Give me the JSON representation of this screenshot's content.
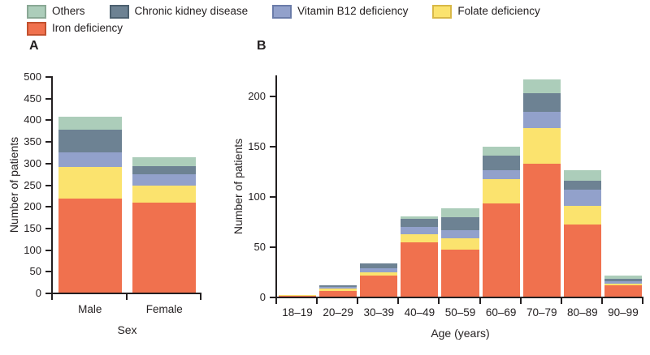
{
  "legend": {
    "items": [
      {
        "label": "Others",
        "color": "#accdba",
        "border": "#8aa895"
      },
      {
        "label": "Chronic kidney disease",
        "color": "#6d8293",
        "border": "#4d6170"
      },
      {
        "label": "Vitamin B12 deficiency",
        "color": "#92a1cb",
        "border": "#6b7ca9"
      },
      {
        "label": "Folate deficiency",
        "color": "#fbe36e",
        "border": "#d8b847"
      },
      {
        "label": "Iron deficiency",
        "color": "#f0714e",
        "border": "#c2512f"
      }
    ],
    "rows": [
      [
        "Others",
        "Chronic kidney disease",
        "Vitamin B12 deficiency",
        "Folate deficiency"
      ],
      [
        "Iron deficiency"
      ]
    ]
  },
  "chart_data": [
    {
      "id": "A",
      "type": "bar",
      "stacked": true,
      "panel_label": "A",
      "xlabel": "Sex",
      "ylabel": "Number of patients",
      "categories": [
        "Male",
        "Female"
      ],
      "yticks": [
        0,
        50,
        100,
        150,
        200,
        250,
        300,
        350,
        400,
        450,
        500
      ],
      "ylim": [
        0,
        500
      ],
      "grid": false,
      "legend_position": "top",
      "series": [
        {
          "name": "Iron deficiency",
          "values": [
            218,
            208
          ]
        },
        {
          "name": "Folate deficiency",
          "values": [
            72,
            40
          ]
        },
        {
          "name": "Vitamin B12 deficiency",
          "values": [
            34,
            25
          ]
        },
        {
          "name": "Chronic kidney disease",
          "values": [
            52,
            20
          ]
        },
        {
          "name": "Others",
          "values": [
            30,
            20
          ]
        }
      ],
      "totals": [
        406,
        313
      ]
    },
    {
      "id": "B",
      "type": "bar",
      "stacked": true,
      "panel_label": "B",
      "xlabel": "Age (years)",
      "ylabel": "Number of patients",
      "categories": [
        "18–19",
        "20–29",
        "30–39",
        "40–49",
        "50–59",
        "60–69",
        "70–79",
        "80–89",
        "90–99"
      ],
      "yticks": [
        0,
        50,
        100,
        150,
        200
      ],
      "ylim": [
        0,
        220
      ],
      "grid": false,
      "legend_position": "top",
      "series": [
        {
          "name": "Iron deficiency",
          "values": [
            1,
            6,
            21,
            54,
            47,
            93,
            132,
            72,
            11
          ]
        },
        {
          "name": "Folate deficiency",
          "values": [
            1,
            2,
            3,
            8,
            11,
            24,
            36,
            18,
            2
          ]
        },
        {
          "name": "Vitamin B12 deficiency",
          "values": [
            0,
            2,
            4,
            7,
            8,
            9,
            16,
            16,
            2
          ]
        },
        {
          "name": "Chronic kidney disease",
          "values": [
            0,
            1,
            5,
            8,
            13,
            14,
            18,
            9,
            3
          ]
        },
        {
          "name": "Others",
          "values": [
            0,
            0,
            0,
            3,
            9,
            9,
            14,
            11,
            3
          ]
        }
      ],
      "totals": [
        2,
        11,
        33,
        80,
        88,
        149,
        216,
        126,
        21
      ]
    }
  ]
}
